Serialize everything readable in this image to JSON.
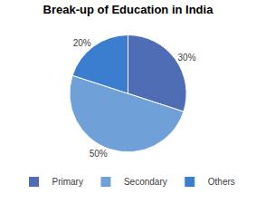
{
  "chart_data": {
    "type": "pie",
    "title": "Break-up of Education in India",
    "categories": [
      "Primary",
      "Secondary",
      "Others"
    ],
    "values": [
      30,
      50,
      20
    ],
    "value_labels": [
      "30%",
      "50%",
      "20%"
    ],
    "colors": [
      "#4e6db5",
      "#6fa1d8",
      "#3b7ecf"
    ],
    "data_labels": true,
    "legend": "bottom"
  }
}
